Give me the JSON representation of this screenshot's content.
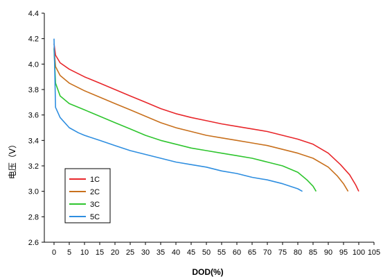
{
  "chart_data": {
    "type": "line",
    "title": "",
    "xlabel": "DOD(%)",
    "ylabel": "电压（V）",
    "xlim": [
      0,
      105
    ],
    "ylim": [
      2.6,
      4.4
    ],
    "x_ticks": [
      0,
      5,
      10,
      15,
      20,
      25,
      30,
      35,
      40,
      45,
      50,
      55,
      60,
      65,
      70,
      75,
      80,
      85,
      90,
      95,
      100,
      105
    ],
    "y_ticks": [
      2.6,
      2.8,
      3.0,
      3.2,
      3.4,
      3.6,
      3.8,
      4.0,
      4.2,
      4.4
    ],
    "y_tick_labels": [
      "2.6",
      "2.8",
      "3.0",
      "3.2",
      "3.4",
      "3.6",
      "3.8",
      "4.0",
      "4.2",
      "4.4"
    ],
    "grid": false,
    "legend_position": "bottom-left",
    "series": [
      {
        "name": "1C",
        "color": "#e8262a",
        "points": [
          [
            0,
            4.16
          ],
          [
            0.5,
            4.07
          ],
          [
            2,
            4.01
          ],
          [
            5,
            3.96
          ],
          [
            10,
            3.9
          ],
          [
            15,
            3.85
          ],
          [
            20,
            3.8
          ],
          [
            25,
            3.75
          ],
          [
            30,
            3.7
          ],
          [
            35,
            3.65
          ],
          [
            40,
            3.61
          ],
          [
            45,
            3.58
          ],
          [
            50,
            3.555
          ],
          [
            55,
            3.53
          ],
          [
            60,
            3.51
          ],
          [
            65,
            3.49
          ],
          [
            70,
            3.47
          ],
          [
            75,
            3.44
          ],
          [
            80,
            3.41
          ],
          [
            85,
            3.37
          ],
          [
            90,
            3.3
          ],
          [
            94,
            3.21
          ],
          [
            97,
            3.13
          ],
          [
            99,
            3.05
          ],
          [
            100,
            3.0
          ]
        ]
      },
      {
        "name": "2C",
        "color": "#c8701c",
        "points": [
          [
            0,
            4.13
          ],
          [
            0.5,
            3.98
          ],
          [
            2,
            3.91
          ],
          [
            5,
            3.85
          ],
          [
            10,
            3.79
          ],
          [
            15,
            3.74
          ],
          [
            20,
            3.69
          ],
          [
            25,
            3.64
          ],
          [
            30,
            3.59
          ],
          [
            35,
            3.54
          ],
          [
            40,
            3.5
          ],
          [
            45,
            3.47
          ],
          [
            50,
            3.44
          ],
          [
            55,
            3.42
          ],
          [
            60,
            3.4
          ],
          [
            65,
            3.38
          ],
          [
            70,
            3.36
          ],
          [
            75,
            3.33
          ],
          [
            80,
            3.3
          ],
          [
            85,
            3.26
          ],
          [
            90,
            3.19
          ],
          [
            93,
            3.12
          ],
          [
            95,
            3.06
          ],
          [
            96.5,
            3.0
          ]
        ]
      },
      {
        "name": "3C",
        "color": "#2ec52e",
        "points": [
          [
            0,
            4.12
          ],
          [
            0.5,
            3.85
          ],
          [
            2,
            3.75
          ],
          [
            5,
            3.69
          ],
          [
            10,
            3.64
          ],
          [
            15,
            3.59
          ],
          [
            20,
            3.54
          ],
          [
            25,
            3.49
          ],
          [
            30,
            3.44
          ],
          [
            35,
            3.4
          ],
          [
            40,
            3.37
          ],
          [
            45,
            3.34
          ],
          [
            50,
            3.32
          ],
          [
            55,
            3.3
          ],
          [
            60,
            3.28
          ],
          [
            65,
            3.26
          ],
          [
            70,
            3.23
          ],
          [
            75,
            3.2
          ],
          [
            80,
            3.15
          ],
          [
            83,
            3.09
          ],
          [
            85,
            3.04
          ],
          [
            86,
            3.0
          ]
        ]
      },
      {
        "name": "5C",
        "color": "#2e8ee0",
        "points": [
          [
            0,
            4.2
          ],
          [
            0.5,
            3.66
          ],
          [
            2,
            3.58
          ],
          [
            5,
            3.5
          ],
          [
            8,
            3.46
          ],
          [
            10,
            3.44
          ],
          [
            15,
            3.4
          ],
          [
            20,
            3.36
          ],
          [
            25,
            3.32
          ],
          [
            30,
            3.29
          ],
          [
            35,
            3.26
          ],
          [
            40,
            3.23
          ],
          [
            45,
            3.21
          ],
          [
            50,
            3.19
          ],
          [
            55,
            3.16
          ],
          [
            60,
            3.14
          ],
          [
            65,
            3.11
          ],
          [
            70,
            3.09
          ],
          [
            75,
            3.06
          ],
          [
            80,
            3.02
          ],
          [
            81.5,
            3.0
          ]
        ]
      }
    ]
  }
}
